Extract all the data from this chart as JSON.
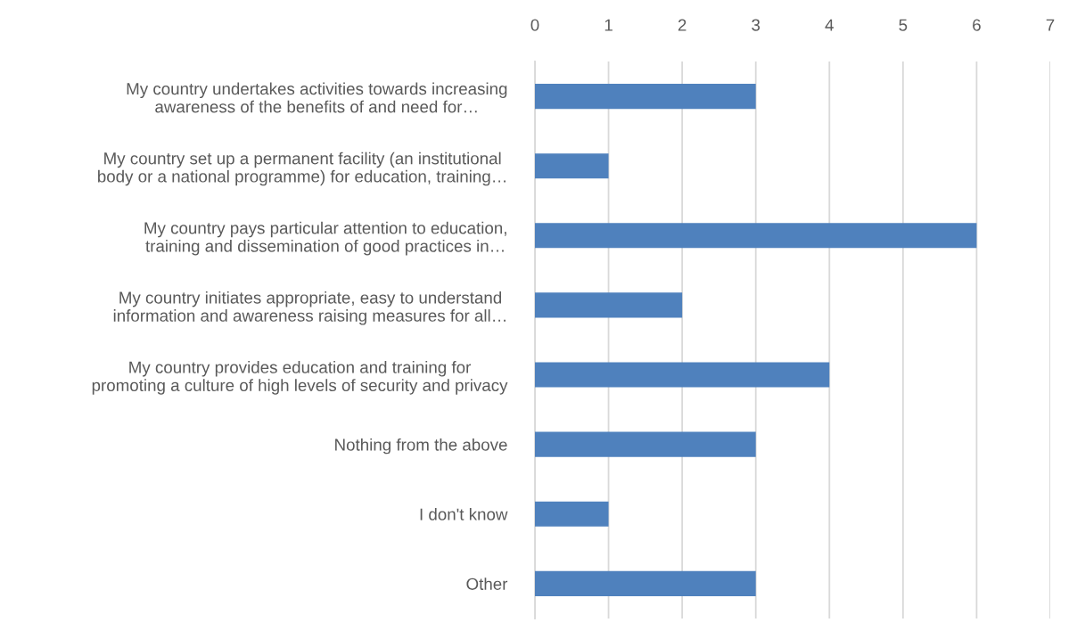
{
  "chart_data": {
    "type": "bar",
    "orientation": "horizontal",
    "categories": [
      "My country undertakes activities towards increasing\nawareness of the benefits of and need for…",
      "My country set up a permanent facility (an institutional\nbody or a national programme) for education, training…",
      "My country pays particular attention to education,\ntraining and dissemination of good practices in…",
      "My country initiates appropriate, easy to understand\ninformation and awareness raising measures for all…",
      "My country provides education and training for\npromoting a culture of high levels of security and privacy",
      "Nothing from the above",
      "I don't know",
      "Other"
    ],
    "values": [
      3,
      1,
      6,
      2,
      4,
      3,
      1,
      3
    ],
    "color": "#4f81bd",
    "xlim": [
      0,
      7
    ],
    "xticks": [
      0,
      1,
      2,
      3,
      4,
      5,
      6,
      7
    ],
    "grid": "x",
    "legend": false
  }
}
